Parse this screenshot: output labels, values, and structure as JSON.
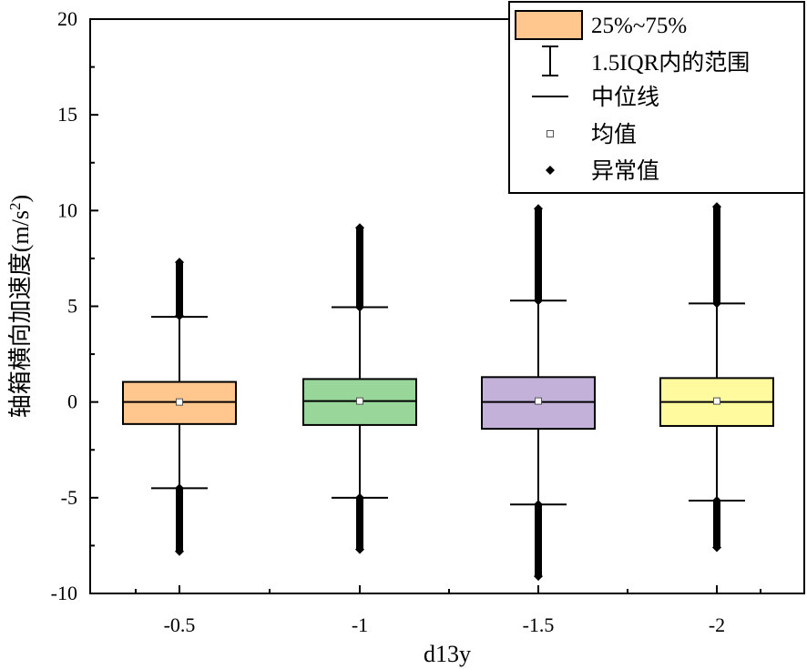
{
  "chart_data": {
    "type": "boxplot",
    "xlabel": "d13y",
    "ylabel": "轴箱横向加速度(m/s",
    "ylabel_superscript": "2",
    "ylabel_close": ")",
    "ylim": [
      -10,
      20
    ],
    "yticks": [
      -10,
      -5,
      0,
      5,
      10,
      15,
      20
    ],
    "categories": [
      "-0.5",
      "-1",
      "-1.5",
      "-2"
    ],
    "boxes": [
      {
        "category": "-0.5",
        "color": "#FFC78E",
        "q1": -1.15,
        "median": 0.0,
        "q3": 1.05,
        "mean": 0.0,
        "whisker_low": -4.5,
        "whisker_high": 4.45,
        "outlier_low": [
          -4.5,
          -7.8
        ],
        "outlier_high": [
          4.5,
          7.3
        ]
      },
      {
        "category": "-1",
        "color": "#99D69A",
        "q1": -1.2,
        "median": 0.05,
        "q3": 1.2,
        "mean": 0.05,
        "whisker_low": -5.0,
        "whisker_high": 4.95,
        "outlier_low": [
          -5.0,
          -7.7
        ],
        "outlier_high": [
          4.95,
          9.1
        ]
      },
      {
        "category": "-1.5",
        "color": "#C3B1D9",
        "q1": -1.4,
        "median": 0.0,
        "q3": 1.3,
        "mean": 0.05,
        "whisker_low": -5.35,
        "whisker_high": 5.3,
        "outlier_low": [
          -5.35,
          -9.1
        ],
        "outlier_high": [
          5.3,
          10.1
        ]
      },
      {
        "category": "-2",
        "color": "#FFFA9E",
        "q1": -1.25,
        "median": 0.0,
        "q3": 1.25,
        "mean": 0.05,
        "whisker_low": -5.15,
        "whisker_high": 5.15,
        "outlier_low": [
          -5.15,
          -7.6
        ],
        "outlier_high": [
          5.15,
          10.2
        ]
      }
    ],
    "legend": {
      "placement": "top-right",
      "items": [
        {
          "symbol": "box",
          "label": "25%~75%",
          "color": "#FFC78E"
        },
        {
          "symbol": "whisker",
          "label": "1.5IQR内的范围"
        },
        {
          "symbol": "line",
          "label": "中位线"
        },
        {
          "symbol": "open-square",
          "label": "均值"
        },
        {
          "symbol": "diamond",
          "label": "异常值"
        }
      ]
    }
  }
}
